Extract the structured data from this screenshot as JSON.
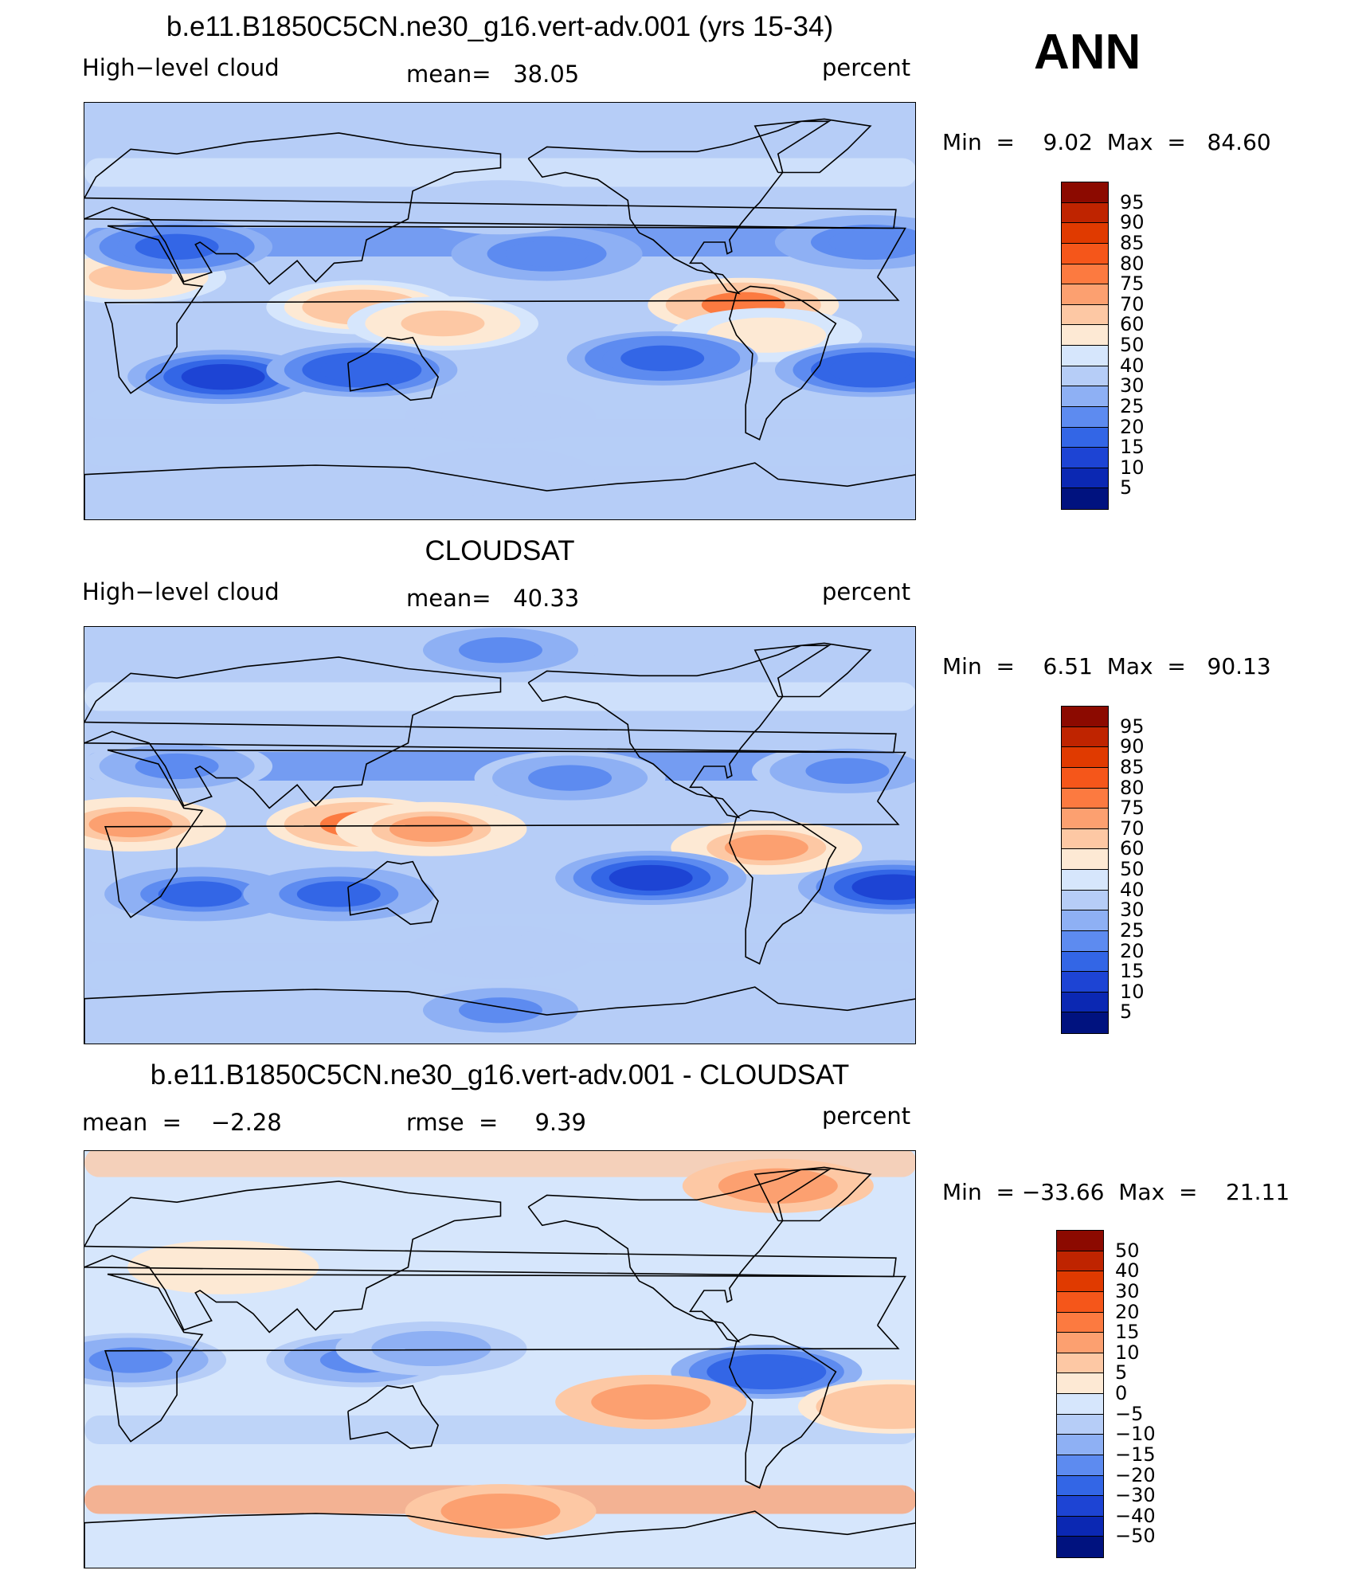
{
  "season": "ANN",
  "panels": [
    {
      "id": "model",
      "title": "b.e11.B1850C5CN.ne30_g16.vert-adv.001 (yrs 15-34)",
      "left_label": "High−level cloud",
      "center_label": "mean=   38.05",
      "right_label": "percent",
      "min_max": "Min  =    9.02  Max  =   84.60",
      "colorbar": [
        "95",
        "90",
        "85",
        "80",
        "75",
        "70",
        "60",
        "50",
        "40",
        "30",
        "25",
        "20",
        "15",
        "10",
        "5"
      ],
      "colors": [
        "#8c0a00",
        "#bf2400",
        "#e03a00",
        "#f5561a",
        "#fc7a40",
        "#fca070",
        "#fdc8a4",
        "#fde9d4",
        "#d6e6fc",
        "#b6cdf7",
        "#8eb0f4",
        "#5d8bf0",
        "#3366e6",
        "#1d44d4",
        "#0b28b3",
        "#00127f"
      ],
      "blobs": [
        {
          "lon": 20,
          "lat": 15,
          "val": 70
        },
        {
          "lon": 120,
          "lat": 2,
          "val": 75
        },
        {
          "lon": 155,
          "lat": -5,
          "val": 65
        },
        {
          "lon": 285,
          "lat": 3,
          "val": 85
        },
        {
          "lon": 295,
          "lat": -10,
          "val": 60
        },
        {
          "lon": 60,
          "lat": -28,
          "val": 10
        },
        {
          "lon": 120,
          "lat": -25,
          "val": 12
        },
        {
          "lon": 250,
          "lat": -20,
          "val": 15
        },
        {
          "lon": 340,
          "lat": -25,
          "val": 12
        },
        {
          "lon": 40,
          "lat": 28,
          "val": 15
        },
        {
          "lon": 200,
          "lat": 25,
          "val": 20
        },
        {
          "lon": 340,
          "lat": 30,
          "val": 20
        },
        {
          "lon": 180,
          "lat": 45,
          "val": 40
        },
        {
          "lon": 180,
          "lat": -45,
          "val": 40
        },
        {
          "lon": 180,
          "lat": -70,
          "val": 35
        }
      ]
    },
    {
      "id": "obs",
      "title": "CLOUDSAT",
      "left_label": "High−level cloud",
      "center_label": "mean=   40.33",
      "right_label": "percent",
      "min_max": "Min  =    6.51  Max  =   90.13",
      "colorbar": [
        "95",
        "90",
        "85",
        "80",
        "75",
        "70",
        "60",
        "50",
        "40",
        "30",
        "25",
        "20",
        "15",
        "10",
        "5"
      ],
      "colors": [
        "#8c0a00",
        "#bf2400",
        "#e03a00",
        "#f5561a",
        "#fc7a40",
        "#fca070",
        "#fdc8a4",
        "#fde9d4",
        "#d6e6fc",
        "#b6cdf7",
        "#8eb0f4",
        "#5d8bf0",
        "#3366e6",
        "#1d44d4",
        "#0b28b3",
        "#00127f"
      ],
      "blobs": [
        {
          "lon": 20,
          "lat": 5,
          "val": 80
        },
        {
          "lon": 120,
          "lat": 5,
          "val": 85
        },
        {
          "lon": 150,
          "lat": 3,
          "val": 78
        },
        {
          "lon": 295,
          "lat": -5,
          "val": 80
        },
        {
          "lon": 50,
          "lat": -25,
          "val": 15
        },
        {
          "lon": 110,
          "lat": -25,
          "val": 15
        },
        {
          "lon": 245,
          "lat": -18,
          "val": 10
        },
        {
          "lon": 350,
          "lat": -22,
          "val": 10
        },
        {
          "lon": 40,
          "lat": 30,
          "val": 20
        },
        {
          "lon": 210,
          "lat": 25,
          "val": 20
        },
        {
          "lon": 330,
          "lat": 28,
          "val": 20
        },
        {
          "lon": 180,
          "lat": -50,
          "val": 40
        },
        {
          "lon": 180,
          "lat": -75,
          "val": 20
        },
        {
          "lon": 180,
          "lat": 80,
          "val": 20
        }
      ]
    },
    {
      "id": "diff",
      "title": "b.e11.B1850C5CN.ne30_g16.vert-adv.001 - CLOUDSAT",
      "left_label": "mean  =    −2.28",
      "center_label": "rmse  =     9.39",
      "right_label": "percent",
      "min_max": "Min  = −33.66  Max  =    21.11",
      "colorbar": [
        "50",
        "40",
        "30",
        "20",
        "15",
        "10",
        "5",
        "0",
        "−5",
        "−10",
        "−15",
        "−20",
        "−30",
        "−40",
        "−50"
      ],
      "colors": [
        "#8c0a00",
        "#bf2400",
        "#e03a00",
        "#f5561a",
        "#fc7a40",
        "#fca070",
        "#fdc8a4",
        "#fde9d4",
        "#d6e6fc",
        "#b6cdf7",
        "#8eb0f4",
        "#5d8bf0",
        "#3366e6",
        "#1d44d4",
        "#0b28b3",
        "#00127f"
      ],
      "blobs": [
        {
          "lon": 120,
          "lat": 0,
          "val": -20
        },
        {
          "lon": 150,
          "lat": 5,
          "val": -15
        },
        {
          "lon": 295,
          "lat": -5,
          "val": -30
        },
        {
          "lon": 20,
          "lat": 0,
          "val": -20
        },
        {
          "lon": 245,
          "lat": -18,
          "val": 15
        },
        {
          "lon": 350,
          "lat": -20,
          "val": 10
        },
        {
          "lon": 180,
          "lat": -65,
          "val": 15
        },
        {
          "lon": 300,
          "lat": 75,
          "val": 15
        },
        {
          "lon": 60,
          "lat": 40,
          "val": 5
        },
        {
          "lon": 180,
          "lat": 30,
          "val": -5
        }
      ]
    }
  ],
  "coast_color": "#000000"
}
